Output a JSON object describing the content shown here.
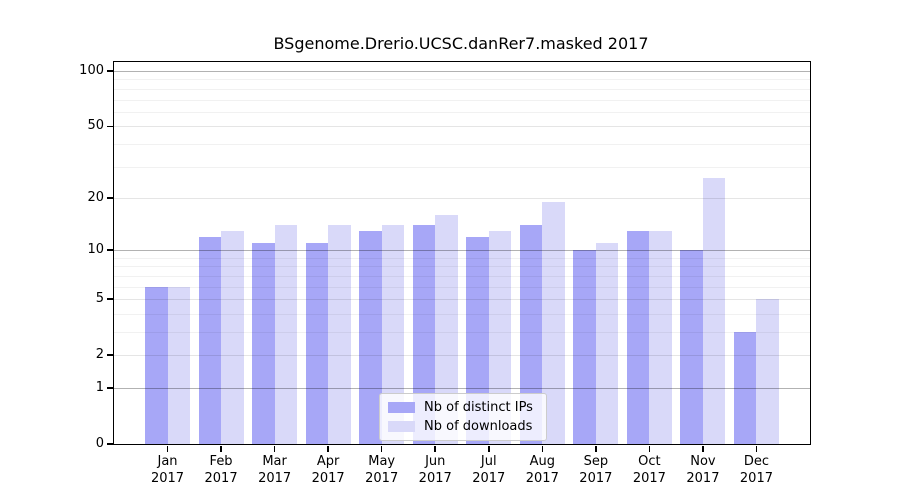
{
  "title": "BSgenome.Drerio.UCSC.danRer7.masked 2017",
  "chart_data": {
    "type": "bar",
    "title": "BSgenome.Drerio.UCSC.danRer7.masked 2017",
    "categories": [
      "Jan",
      "Feb",
      "Mar",
      "Apr",
      "May",
      "Jun",
      "Jul",
      "Aug",
      "Sep",
      "Oct",
      "Nov",
      "Dec"
    ],
    "year": "2017",
    "series": [
      {
        "name": "Nb of distinct IPs",
        "color": "#a7a7f7",
        "values": [
          6,
          12,
          11,
          11,
          13,
          14,
          12,
          14,
          10,
          13,
          10,
          3
        ]
      },
      {
        "name": "Nb of downloads",
        "color": "#d9d9f9",
        "values": [
          6,
          13,
          14,
          14,
          14,
          16,
          13,
          19,
          11,
          13,
          26,
          5
        ]
      }
    ],
    "xlabel": "",
    "ylabel": "",
    "y_scale": "log1p",
    "ylim": [
      0,
      112
    ],
    "y_major_ticks": [
      0,
      1,
      2,
      5,
      10,
      20,
      50,
      100
    ],
    "y_emphasis_gridlines": [
      1,
      10,
      100
    ],
    "y_mid_gridlines": [
      2,
      5,
      20,
      50
    ],
    "y_minor_gridlines": [
      3,
      4,
      6,
      7,
      8,
      9,
      30,
      40,
      60,
      70,
      80,
      90
    ],
    "grid": "on",
    "legend_position": "lower center"
  },
  "legend": {
    "items": [
      {
        "label": "Nb of distinct IPs"
      },
      {
        "label": "Nb of downloads"
      }
    ]
  }
}
